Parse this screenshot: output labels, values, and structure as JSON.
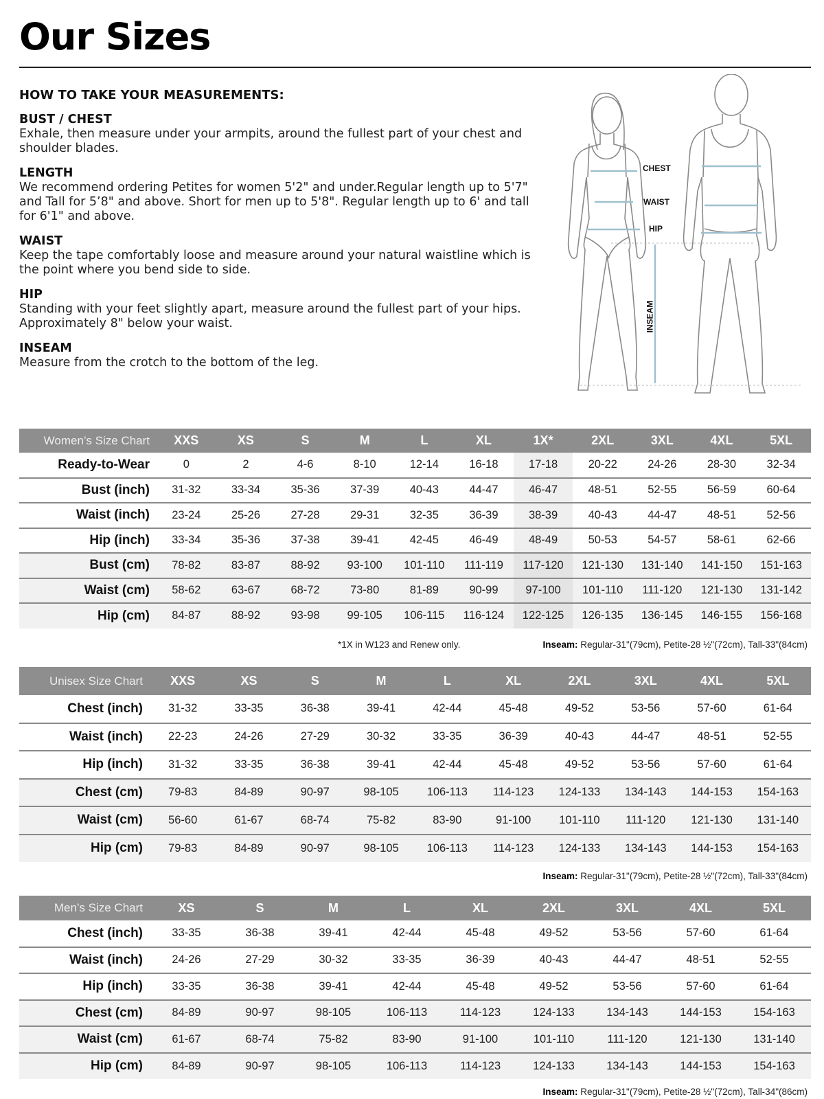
{
  "title": "Our Sizes",
  "guide": {
    "heading": "HOW TO TAKE YOUR MEASUREMENTS:",
    "sections": [
      {
        "title": "BUST / CHEST",
        "text": "Exhale, then measure under your armpits, around the fullest part of your chest and shoulder blades."
      },
      {
        "title": "LENGTH",
        "text": "We recommend ordering Petites for women 5'2\" and under.Regular length up to 5'7\" and Tall for 5’8\" and above. Short for men up to 5'8\". Regular length up to 6' and tall for 6'1\" and above."
      },
      {
        "title": "WAIST",
        "text": "Keep the tape comfortably loose and measure around your natural waistline which is the point where you bend side to side."
      },
      {
        "title": "HIP",
        "text": "Standing with your feet slightly apart, measure around the fullest part of your hips. Approximately 8\" below your waist."
      },
      {
        "title": "INSEAM",
        "text": "Measure from the crotch to the bottom of the leg."
      }
    ]
  },
  "figure": {
    "chest": "CHEST",
    "waist": "WAIST",
    "hip": "HIP",
    "inseam": "INSEAM"
  },
  "colors": {
    "header": "#8e8e8e",
    "measure_line": "#9fbfcf",
    "alt_row": "#f1f1f1"
  },
  "women": {
    "label": "Women’s Size Chart",
    "sizes": [
      "XXS",
      "XS",
      "S",
      "M",
      "L",
      "XL",
      "1X*",
      "2XL",
      "3XL",
      "4XL",
      "5XL"
    ],
    "highlight_col": 6,
    "rows": [
      {
        "label": "Ready-to-Wear",
        "values": [
          "0",
          "2",
          "4-6",
          "8-10",
          "12-14",
          "16-18",
          "17-18",
          "20-22",
          "24-26",
          "28-30",
          "32-34"
        ]
      },
      {
        "label": "Bust (inch)",
        "values": [
          "31-32",
          "33-34",
          "35-36",
          "37-39",
          "40-43",
          "44-47",
          "46-47",
          "48-51",
          "52-55",
          "56-59",
          "60-64"
        ]
      },
      {
        "label": "Waist (inch)",
        "values": [
          "23-24",
          "25-26",
          "27-28",
          "29-31",
          "32-35",
          "36-39",
          "38-39",
          "40-43",
          "44-47",
          "48-51",
          "52-56"
        ]
      },
      {
        "label": "Hip (inch)",
        "values": [
          "33-34",
          "35-36",
          "37-38",
          "39-41",
          "42-45",
          "46-49",
          "48-49",
          "50-53",
          "54-57",
          "58-61",
          "62-66"
        ]
      },
      {
        "label": "Bust (cm)",
        "values": [
          "78-82",
          "83-87",
          "88-92",
          "93-100",
          "101-110",
          "111-119",
          "117-120",
          "121-130",
          "131-140",
          "141-150",
          "151-163"
        ]
      },
      {
        "label": "Waist (cm)",
        "values": [
          "58-62",
          "63-67",
          "68-72",
          "73-80",
          "81-89",
          "90-99",
          "97-100",
          "101-110",
          "111-120",
          "121-130",
          "131-142"
        ]
      },
      {
        "label": "Hip (cm)",
        "values": [
          "84-87",
          "88-92",
          "93-98",
          "99-105",
          "106-115",
          "116-124",
          "122-125",
          "126-135",
          "136-145",
          "146-155",
          "156-168"
        ]
      }
    ],
    "footnote": "*1X in W123 and Renew only.",
    "inseam_label": "Inseam:",
    "inseam": " Regular-31\"(79cm), Petite-28 ½\"(72cm), Tall-33\"(84cm)"
  },
  "unisex": {
    "label": "Unisex Size Chart",
    "sizes": [
      "XXS",
      "XS",
      "S",
      "M",
      "L",
      "XL",
      "2XL",
      "3XL",
      "4XL",
      "5XL"
    ],
    "rows": [
      {
        "label": "Chest (inch)",
        "values": [
          "31-32",
          "33-35",
          "36-38",
          "39-41",
          "42-44",
          "45-48",
          "49-52",
          "53-56",
          "57-60",
          "61-64"
        ]
      },
      {
        "label": "Waist (inch)",
        "values": [
          "22-23",
          "24-26",
          "27-29",
          "30-32",
          "33-35",
          "36-39",
          "40-43",
          "44-47",
          "48-51",
          "52-55"
        ]
      },
      {
        "label": "Hip (inch)",
        "values": [
          "31-32",
          "33-35",
          "36-38",
          "39-41",
          "42-44",
          "45-48",
          "49-52",
          "53-56",
          "57-60",
          "61-64"
        ]
      },
      {
        "label": "Chest (cm)",
        "values": [
          "79-83",
          "84-89",
          "90-97",
          "98-105",
          "106-113",
          "114-123",
          "124-133",
          "134-143",
          "144-153",
          "154-163"
        ]
      },
      {
        "label": "Waist (cm)",
        "values": [
          "56-60",
          "61-67",
          "68-74",
          "75-82",
          "83-90",
          "91-100",
          "101-110",
          "111-120",
          "121-130",
          "131-140"
        ]
      },
      {
        "label": "Hip (cm)",
        "values": [
          "79-83",
          "84-89",
          "90-97",
          "98-105",
          "106-113",
          "114-123",
          "124-133",
          "134-143",
          "144-153",
          "154-163"
        ]
      }
    ],
    "inseam_label": "Inseam:",
    "inseam": " Regular-31\"(79cm), Petite-28 ½\"(72cm), Tall-33\"(84cm)"
  },
  "men": {
    "label": "Men’s Size Chart",
    "sizes": [
      "XS",
      "S",
      "M",
      "L",
      "XL",
      "2XL",
      "3XL",
      "4XL",
      "5XL"
    ],
    "rows": [
      {
        "label": "Chest (inch)",
        "values": [
          "33-35",
          "36-38",
          "39-41",
          "42-44",
          "45-48",
          "49-52",
          "53-56",
          "57-60",
          "61-64"
        ]
      },
      {
        "label": "Waist (inch)",
        "values": [
          "24-26",
          "27-29",
          "30-32",
          "33-35",
          "36-39",
          "40-43",
          "44-47",
          "48-51",
          "52-55"
        ]
      },
      {
        "label": "Hip (inch)",
        "values": [
          "33-35",
          "36-38",
          "39-41",
          "42-44",
          "45-48",
          "49-52",
          "53-56",
          "57-60",
          "61-64"
        ]
      },
      {
        "label": "Chest (cm)",
        "values": [
          "84-89",
          "90-97",
          "98-105",
          "106-113",
          "114-123",
          "124-133",
          "134-143",
          "144-153",
          "154-163"
        ]
      },
      {
        "label": "Waist (cm)",
        "values": [
          "61-67",
          "68-74",
          "75-82",
          "83-90",
          "91-100",
          "101-110",
          "111-120",
          "121-130",
          "131-140"
        ]
      },
      {
        "label": "Hip (cm)",
        "values": [
          "84-89",
          "90-97",
          "98-105",
          "106-113",
          "114-123",
          "124-133",
          "134-143",
          "144-153",
          "154-163"
        ]
      }
    ],
    "inseam_label": "Inseam:",
    "inseam": " Regular-31\"(79cm), Petite-28 ½\"(72cm), Tall-34\"(86cm)"
  }
}
